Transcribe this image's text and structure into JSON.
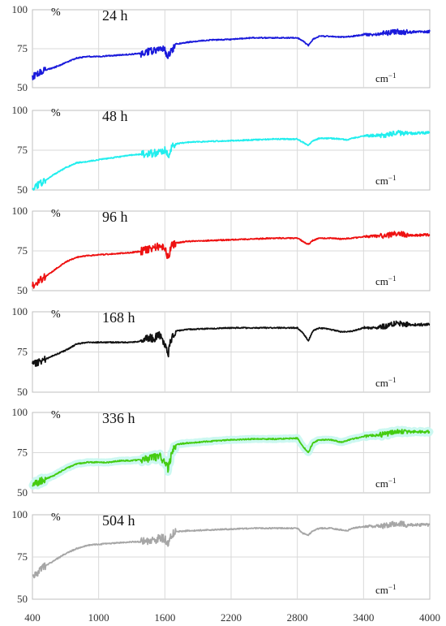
{
  "chart_data": {
    "type": "line",
    "layout": "stacked-panels",
    "shared_x": {
      "xlim": [
        400,
        4000
      ],
      "xticks": [
        400,
        1000,
        1600,
        2200,
        2800,
        3400,
        4000
      ],
      "xtick_labels": [
        "400",
        "1000",
        "1600",
        "2200",
        "2800",
        "3400",
        "4000"
      ]
    },
    "panels": [
      {
        "label": "24 h",
        "ylabel": "%",
        "xunit": "cm",
        "xunit_exp": "−1",
        "ylim": [
          50,
          100
        ],
        "yticks": [
          50,
          75,
          100
        ],
        "color": "#1a1adb",
        "points": [
          [
            400,
            57
          ],
          [
            500,
            61
          ],
          [
            600,
            63
          ],
          [
            700,
            66
          ],
          [
            800,
            69
          ],
          [
            900,
            70
          ],
          [
            1000,
            70
          ],
          [
            1100,
            70.5
          ],
          [
            1200,
            71
          ],
          [
            1300,
            71.5
          ],
          [
            1400,
            72
          ],
          [
            1450,
            73
          ],
          [
            1500,
            73.5
          ],
          [
            1550,
            75
          ],
          [
            1600,
            74
          ],
          [
            1630,
            70
          ],
          [
            1650,
            73
          ],
          [
            1700,
            78
          ],
          [
            1800,
            79
          ],
          [
            1900,
            80
          ],
          [
            2000,
            80.5
          ],
          [
            2200,
            81
          ],
          [
            2400,
            82
          ],
          [
            2600,
            82
          ],
          [
            2800,
            82
          ],
          [
            2850,
            80
          ],
          [
            2900,
            77
          ],
          [
            2940,
            81
          ],
          [
            3000,
            83
          ],
          [
            3100,
            83
          ],
          [
            3200,
            82.5
          ],
          [
            3300,
            83
          ],
          [
            3400,
            84
          ],
          [
            3500,
            84
          ],
          [
            3600,
            85
          ],
          [
            3700,
            86
          ],
          [
            3800,
            85.5
          ],
          [
            3900,
            86
          ],
          [
            4000,
            86
          ]
        ]
      },
      {
        "label": "48 h",
        "ylabel": "%",
        "xunit": "cm",
        "xunit_exp": "−1",
        "ylim": [
          50,
          100
        ],
        "yticks": [
          50,
          75,
          100
        ],
        "color": "#22eeee",
        "points": [
          [
            400,
            51
          ],
          [
            500,
            55
          ],
          [
            600,
            60
          ],
          [
            700,
            64
          ],
          [
            800,
            67
          ],
          [
            900,
            68
          ],
          [
            1000,
            69
          ],
          [
            1100,
            70
          ],
          [
            1200,
            71
          ],
          [
            1300,
            72
          ],
          [
            1400,
            72.5
          ],
          [
            1500,
            73
          ],
          [
            1550,
            74
          ],
          [
            1600,
            75
          ],
          [
            1630,
            71
          ],
          [
            1660,
            77
          ],
          [
            1700,
            79
          ],
          [
            1800,
            80
          ],
          [
            2000,
            80.5
          ],
          [
            2200,
            81
          ],
          [
            2400,
            81.5
          ],
          [
            2600,
            82
          ],
          [
            2800,
            82
          ],
          [
            2850,
            80
          ],
          [
            2900,
            78
          ],
          [
            2940,
            81
          ],
          [
            3000,
            82.5
          ],
          [
            3100,
            82.5
          ],
          [
            3200,
            82
          ],
          [
            3250,
            81.5
          ],
          [
            3300,
            82.5
          ],
          [
            3400,
            84
          ],
          [
            3600,
            84.5
          ],
          [
            3700,
            86
          ],
          [
            3800,
            85.5
          ],
          [
            4000,
            86
          ]
        ]
      },
      {
        "label": "96 h",
        "ylabel": "%",
        "xunit": "cm",
        "xunit_exp": "−1",
        "ylim": [
          50,
          100
        ],
        "yticks": [
          50,
          75,
          100
        ],
        "color": "#ee1111",
        "points": [
          [
            400,
            53
          ],
          [
            500,
            58
          ],
          [
            600,
            63
          ],
          [
            700,
            68
          ],
          [
            800,
            71
          ],
          [
            900,
            72
          ],
          [
            1000,
            72.5
          ],
          [
            1100,
            73
          ],
          [
            1200,
            73.5
          ],
          [
            1300,
            74
          ],
          [
            1400,
            75
          ],
          [
            1500,
            77
          ],
          [
            1550,
            78
          ],
          [
            1600,
            76
          ],
          [
            1630,
            71
          ],
          [
            1660,
            78
          ],
          [
            1700,
            80
          ],
          [
            1800,
            81
          ],
          [
            2000,
            81.5
          ],
          [
            2200,
            82
          ],
          [
            2400,
            82.5
          ],
          [
            2600,
            83
          ],
          [
            2800,
            83
          ],
          [
            2850,
            81
          ],
          [
            2900,
            79
          ],
          [
            2940,
            81.5
          ],
          [
            3000,
            83
          ],
          [
            3100,
            83
          ],
          [
            3200,
            82.5
          ],
          [
            3300,
            83
          ],
          [
            3400,
            84
          ],
          [
            3600,
            84.5
          ],
          [
            3700,
            86
          ],
          [
            3800,
            85
          ],
          [
            4000,
            85
          ]
        ]
      },
      {
        "label": "168 h",
        "ylabel": "%",
        "xunit": "cm",
        "xunit_exp": "−1",
        "ylim": [
          50,
          100
        ],
        "yticks": [
          50,
          75,
          100
        ],
        "color": "#111111",
        "points": [
          [
            400,
            67
          ],
          [
            500,
            70
          ],
          [
            600,
            73
          ],
          [
            700,
            76
          ],
          [
            800,
            80
          ],
          [
            900,
            81
          ],
          [
            1000,
            81
          ],
          [
            1100,
            81
          ],
          [
            1200,
            81
          ],
          [
            1300,
            81
          ],
          [
            1400,
            82
          ],
          [
            1450,
            84
          ],
          [
            1500,
            83
          ],
          [
            1550,
            86
          ],
          [
            1600,
            80
          ],
          [
            1630,
            73
          ],
          [
            1650,
            82
          ],
          [
            1700,
            88
          ],
          [
            1800,
            89
          ],
          [
            2000,
            89.5
          ],
          [
            2200,
            90
          ],
          [
            2400,
            90
          ],
          [
            2600,
            90
          ],
          [
            2800,
            90
          ],
          [
            2850,
            87
          ],
          [
            2900,
            82
          ],
          [
            2940,
            88
          ],
          [
            3000,
            90
          ],
          [
            3100,
            89
          ],
          [
            3200,
            87.5
          ],
          [
            3300,
            88
          ],
          [
            3400,
            90
          ],
          [
            3500,
            90
          ],
          [
            3600,
            91
          ],
          [
            3700,
            93
          ],
          [
            3800,
            92
          ],
          [
            3900,
            92
          ],
          [
            4000,
            92
          ]
        ]
      },
      {
        "label": "336 h",
        "ylabel": "%",
        "xunit": "cm",
        "xunit_exp": "−1",
        "ylim": [
          50,
          100
        ],
        "yticks": [
          50,
          75,
          100
        ],
        "color": "#44cc11",
        "points": [
          [
            400,
            55
          ],
          [
            500,
            58
          ],
          [
            600,
            61
          ],
          [
            700,
            65
          ],
          [
            800,
            68
          ],
          [
            900,
            69
          ],
          [
            1000,
            69
          ],
          [
            1100,
            69
          ],
          [
            1200,
            70
          ],
          [
            1300,
            70
          ],
          [
            1400,
            71
          ],
          [
            1500,
            72
          ],
          [
            1550,
            73
          ],
          [
            1600,
            69
          ],
          [
            1630,
            65
          ],
          [
            1660,
            74
          ],
          [
            1700,
            80
          ],
          [
            1800,
            81
          ],
          [
            2000,
            82
          ],
          [
            2200,
            83
          ],
          [
            2400,
            83.5
          ],
          [
            2600,
            83.5
          ],
          [
            2800,
            84
          ],
          [
            2850,
            79
          ],
          [
            2900,
            75
          ],
          [
            2940,
            81
          ],
          [
            3000,
            83
          ],
          [
            3100,
            83
          ],
          [
            3200,
            81.5
          ],
          [
            3300,
            83.5
          ],
          [
            3400,
            85
          ],
          [
            3600,
            86.5
          ],
          [
            3700,
            88
          ],
          [
            3800,
            88
          ],
          [
            3900,
            88
          ],
          [
            4000,
            88
          ]
        ]
      },
      {
        "label": "504 h",
        "ylabel": "%",
        "xunit": "cm",
        "xunit_exp": "−1",
        "ylim": [
          50,
          100
        ],
        "yticks": [
          50,
          75,
          100
        ],
        "color": "#a6a6a6",
        "points": [
          [
            400,
            63
          ],
          [
            500,
            69
          ],
          [
            600,
            73
          ],
          [
            700,
            77
          ],
          [
            800,
            80
          ],
          [
            900,
            82
          ],
          [
            1000,
            82.5
          ],
          [
            1100,
            83
          ],
          [
            1200,
            83.5
          ],
          [
            1300,
            84
          ],
          [
            1400,
            84
          ],
          [
            1500,
            85
          ],
          [
            1550,
            86
          ],
          [
            1600,
            86
          ],
          [
            1630,
            82
          ],
          [
            1660,
            88
          ],
          [
            1700,
            90
          ],
          [
            1800,
            90.5
          ],
          [
            2000,
            91
          ],
          [
            2200,
            91.5
          ],
          [
            2400,
            92
          ],
          [
            2600,
            92
          ],
          [
            2800,
            92
          ],
          [
            2850,
            89
          ],
          [
            2900,
            88
          ],
          [
            2940,
            90.5
          ],
          [
            3000,
            92
          ],
          [
            3100,
            92
          ],
          [
            3200,
            91
          ],
          [
            3250,
            90.5
          ],
          [
            3300,
            92
          ],
          [
            3400,
            93
          ],
          [
            3600,
            93.5
          ],
          [
            3700,
            95
          ],
          [
            3800,
            94
          ],
          [
            4000,
            94
          ]
        ]
      }
    ]
  }
}
